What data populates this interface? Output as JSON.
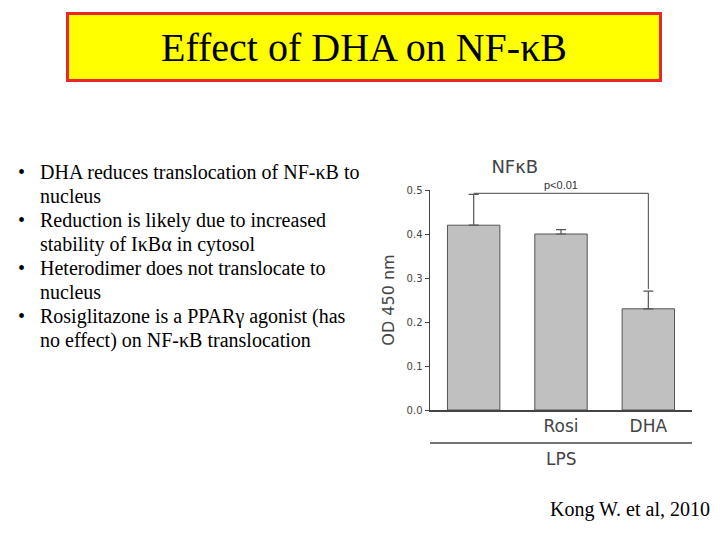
{
  "slide": {
    "title": "Effect of DHA on NF-κB",
    "bullets": [
      "DHA reduces translocation of NF-κB to nucleus",
      "Reduction is likely due to increased stability of IκBα in cytosol",
      "Heterodimer does not translocate to nucleus",
      "Rosiglitazone is a PPARγ agonist (has no effect) on NF-κB translocation"
    ],
    "citation": "Kong W. et al, 2010"
  },
  "chart_data": {
    "type": "bar",
    "title": "NFκB",
    "y_label": "OD 450 nm",
    "categories": [
      null,
      "Rosi",
      "DHA"
    ],
    "values": [
      0.42,
      0.4,
      0.23
    ],
    "errors": [
      0.07,
      0.01,
      0.04
    ],
    "color": "#c0c0c0",
    "group_label": "LPS",
    "comparisons": [
      {
        "label": "p<0.01",
        "between": [
          0,
          2
        ]
      }
    ],
    "ylim": [
      0,
      0.5
    ],
    "yticks": [
      {
        "value": 0,
        "label": "0.0"
      },
      0.1,
      0.2,
      0.3,
      0.4,
      0.5
    ],
    "grid": false
  }
}
